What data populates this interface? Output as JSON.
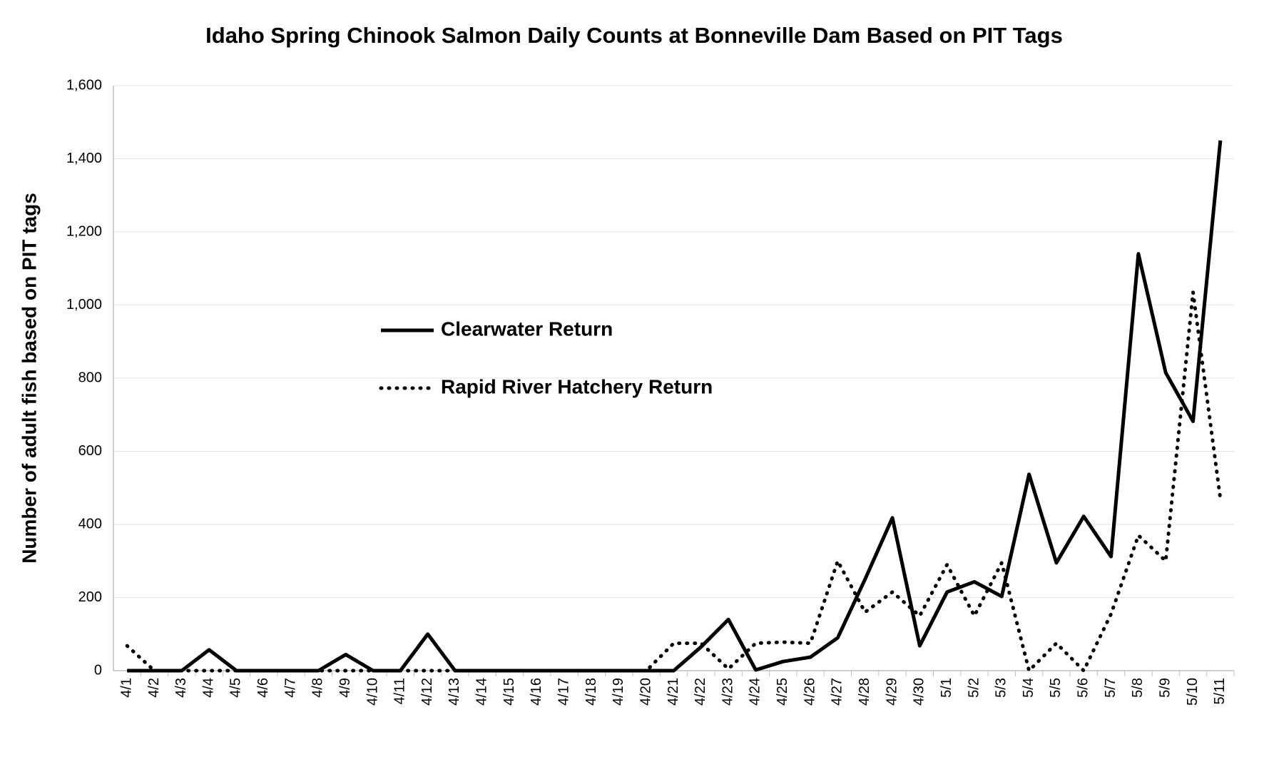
{
  "chart_data": {
    "type": "line",
    "title": "Idaho Spring Chinook Salmon Daily Counts at Bonneville Dam Based on PIT Tags",
    "y_label": "Number of adult fish based on PIT tags",
    "categories": [
      "4/1",
      "4/2",
      "4/3",
      "4/4",
      "4/5",
      "4/6",
      "4/7",
      "4/8",
      "4/9",
      "4/10",
      "4/11",
      "4/12",
      "4/13",
      "4/14",
      "4/15",
      "4/16",
      "4/17",
      "4/18",
      "4/19",
      "4/20",
      "4/21",
      "4/22",
      "4/23",
      "4/24",
      "4/25",
      "4/26",
      "4/27",
      "4/28",
      "4/29",
      "4/30",
      "5/1",
      "5/2",
      "5/3",
      "5/4",
      "5/5",
      "5/6",
      "5/7",
      "5/8",
      "5/9",
      "5/10",
      "5/11"
    ],
    "series": [
      {
        "name": "Clearwater Return",
        "color": "#000000",
        "style": "solid",
        "values": [
          0,
          0,
          0,
          57,
          0,
          0,
          0,
          0,
          44,
          0,
          0,
          100,
          0,
          0,
          0,
          0,
          0,
          0,
          0,
          0,
          0,
          65,
          140,
          2,
          25,
          37,
          90,
          250,
          418,
          68,
          215,
          243,
          203,
          537,
          295,
          422,
          312,
          1140,
          815,
          682,
          1450
        ]
      },
      {
        "name": "Rapid River Hatchery Return",
        "color": "#000000",
        "style": "dotted",
        "values": [
          68,
          0,
          0,
          0,
          0,
          0,
          0,
          0,
          0,
          0,
          0,
          0,
          0,
          0,
          0,
          0,
          0,
          0,
          0,
          0,
          75,
          75,
          5,
          75,
          78,
          75,
          300,
          160,
          215,
          150,
          290,
          150,
          295,
          0,
          75,
          0,
          155,
          370,
          300,
          1035,
          470
        ]
      }
    ],
    "ylim": [
      0,
      1600
    ],
    "yticks": [
      0,
      200,
      400,
      600,
      800,
      {
        "value": 1000,
        "label": "1,000"
      },
      {
        "value": 1200,
        "label": "1,200"
      },
      {
        "value": 1400,
        "label": "1,400"
      },
      {
        "value": 1600,
        "label": "1,600"
      }
    ],
    "grid": true,
    "legend": "center"
  }
}
